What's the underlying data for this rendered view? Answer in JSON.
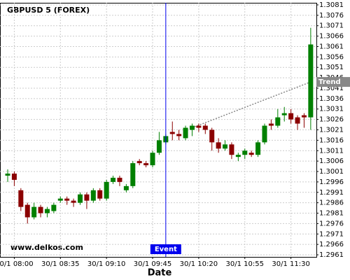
{
  "chart_data": {
    "type": "candlestick",
    "title": "GBPUSD 5 (FOREX)",
    "x_label": "Date",
    "watermark": "www.delkos.com",
    "x": [
      "30/1 07:55",
      "30/1 08:00",
      "30/1 08:05",
      "30/1 08:10",
      "30/1 08:15",
      "30/1 08:20",
      "30/1 08:25",
      "30/1 08:30",
      "30/1 08:35",
      "30/1 08:40",
      "30/1 08:45",
      "30/1 08:50",
      "30/1 08:55",
      "30/1 09:00",
      "30/1 09:05",
      "30/1 09:10",
      "30/1 09:15",
      "30/1 09:20",
      "30/1 09:25",
      "30/1 09:30",
      "30/1 09:35",
      "30/1 09:40",
      "30/1 09:45",
      "30/1 09:50",
      "30/1 09:55",
      "30/1 10:00",
      "30/1 10:05",
      "30/1 10:10",
      "30/1 10:15",
      "30/1 10:20",
      "30/1 10:25",
      "30/1 10:30",
      "30/1 10:35",
      "30/1 10:40",
      "30/1 10:45",
      "30/1 10:50",
      "30/1 10:55",
      "30/1 11:00",
      "30/1 11:05",
      "30/1 11:10",
      "30/1 11:15",
      "30/1 11:20",
      "30/1 11:25",
      "30/1 11:30",
      "30/1 11:35",
      "30/1 11:40",
      "30/1 11:45"
    ],
    "xtick_index": [
      1,
      8,
      15,
      22,
      29,
      36,
      43
    ],
    "open": [
      1.2999,
      1.3,
      1.2992,
      1.2985,
      1.2979,
      1.2984,
      1.2981,
      1.2982,
      1.2987,
      1.2988,
      1.2987,
      1.2986,
      1.299,
      1.2987,
      1.2992,
      1.2988,
      1.2996,
      1.2998,
      1.2992,
      1.2994,
      1.3006,
      1.3005,
      1.3004,
      1.301,
      1.3015,
      1.302,
      1.3019,
      1.3017,
      1.3021,
      1.3023,
      1.3023,
      1.3021,
      1.3015,
      1.3012,
      1.3014,
      1.3008,
      1.3009,
      1.301,
      1.3009,
      1.3015,
      1.3024,
      1.3023,
      1.3028,
      1.3029,
      1.3027,
      1.3028,
      1.3027
    ],
    "high": [
      1.3002,
      1.3001,
      1.2993,
      1.2986,
      1.2986,
      1.2985,
      1.2984,
      1.2986,
      1.2989,
      1.2989,
      1.2988,
      1.2991,
      1.2991,
      1.2993,
      1.2993,
      1.2997,
      1.2999,
      1.2999,
      1.2995,
      1.3006,
      1.3007,
      1.3006,
      1.3011,
      1.302,
      1.3019,
      1.3025,
      1.3021,
      1.3023,
      1.3024,
      1.3024,
      1.3024,
      1.3022,
      1.3017,
      1.3016,
      1.3015,
      1.301,
      1.3012,
      1.3011,
      1.3016,
      1.3024,
      1.3026,
      1.3031,
      1.3032,
      1.3031,
      1.3028,
      1.3029,
      1.307
    ],
    "low": [
      1.2996,
      1.2994,
      1.2982,
      1.2976,
      1.2978,
      1.2979,
      1.2979,
      1.2981,
      1.2986,
      1.2985,
      1.2984,
      1.2985,
      1.2983,
      1.2986,
      1.2987,
      1.2987,
      1.2995,
      1.2994,
      1.2991,
      1.2993,
      1.3004,
      1.3003,
      1.3003,
      1.3009,
      1.3014,
      1.3016,
      1.3016,
      1.3016,
      1.3018,
      1.302,
      1.3019,
      1.3011,
      1.301,
      1.3011,
      1.3007,
      1.3006,
      1.3007,
      1.3008,
      1.3008,
      1.3014,
      1.3021,
      1.3022,
      1.3025,
      1.3024,
      1.3021,
      1.3022,
      1.3021
    ],
    "close": [
      1.3,
      1.2997,
      1.2984,
      1.2979,
      1.2984,
      1.2981,
      1.2983,
      1.2985,
      1.2988,
      1.2987,
      1.2986,
      1.299,
      1.2987,
      1.2992,
      1.2988,
      1.2996,
      1.2998,
      1.2996,
      1.2994,
      1.3005,
      1.3005,
      1.3004,
      1.301,
      1.3016,
      1.3018,
      1.3019,
      1.3018,
      1.3022,
      1.3023,
      1.3022,
      1.3021,
      1.3015,
      1.3012,
      1.3014,
      1.3009,
      1.3009,
      1.3011,
      1.3009,
      1.3015,
      1.3023,
      1.3023,
      1.3027,
      1.3029,
      1.3026,
      1.3024,
      1.3027,
      1.3062
    ],
    "up_color": "#008000",
    "down_color": "#8b0000",
    "ylim": [
      1.296,
      1.3082
    ],
    "yticks": [
      1.3081,
      1.3076,
      1.3071,
      1.3066,
      1.3061,
      1.3056,
      1.3051,
      1.3046,
      1.3041,
      1.3036,
      1.3031,
      1.3026,
      1.3021,
      1.3016,
      1.3011,
      1.3006,
      1.3001,
      1.2996,
      1.2991,
      1.2986,
      1.2981,
      1.2976,
      1.2971,
      1.2966,
      1.2961
    ],
    "grid": true,
    "event": {
      "label": "Event",
      "x": "30/1 09:55",
      "color": "#0000ee"
    },
    "trend": {
      "label": "Trend",
      "x": [
        "30/1 10:15",
        "30/1 11:45"
      ],
      "y": [
        1.3022,
        1.3044
      ],
      "color": "#888888"
    }
  }
}
